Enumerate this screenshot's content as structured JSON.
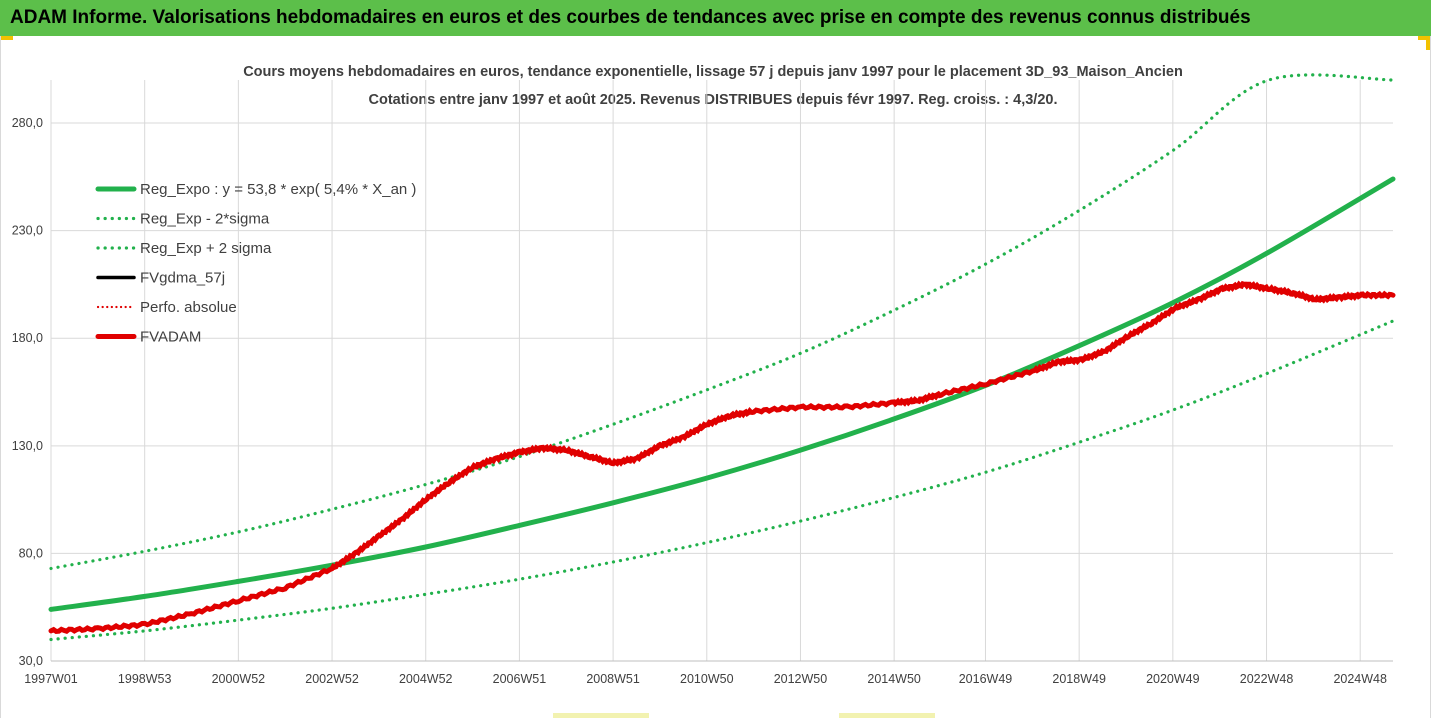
{
  "header": {
    "title": "ADAM Informe. Valorisations hebdomadaires en euros et des courbes de tendances avec prise en compte des revenus connus distribués"
  },
  "colors": {
    "banner": "#5cbf4a",
    "reg_expo": "#22b14c",
    "bands": "#22b14c",
    "fvgdma": "#000000",
    "perfo": "#e00000",
    "fvadam": "#e00000"
  },
  "chart_data": {
    "type": "line",
    "title": "Cours moyens hebdomadaires en euros, tendance exponentielle, lissage 57 j depuis janv 1997 pour le placement 3D_93_Maison_Ancien",
    "subtitle": "Cotations entre janv 1997 et août 2025. Revenus DISTRIBUES depuis févr 1997. Reg. croiss. : 4,3/20.",
    "xlabel": "",
    "ylabel": "",
    "x_range": [
      1997.0,
      2025.65
    ],
    "ylim": [
      30,
      300
    ],
    "yticks": [
      30,
      80,
      130,
      180,
      230,
      280
    ],
    "ytick_labels": [
      "30,0",
      "80,0",
      "130,0",
      "180,0",
      "230,0",
      "280,0"
    ],
    "xtick_labels": [
      "1997W01",
      "1998W53",
      "2000W52",
      "2002W52",
      "2004W52",
      "2006W51",
      "2008W51",
      "2010W50",
      "2012W50",
      "2014W50",
      "2016W49",
      "2018W49",
      "2020W49",
      "2022W48",
      "2024W48"
    ],
    "xtick_years": [
      1997.0,
      1999.0,
      2001.0,
      2003.0,
      2005.0,
      2007.0,
      2009.0,
      2011.0,
      2013.0,
      2015.0,
      2016.95,
      2018.95,
      2020.95,
      2022.95,
      2024.95
    ],
    "grid": true,
    "legend_position": "top-left",
    "series": [
      {
        "name": "Reg_Expo : y = 53,8 * exp( 5,4% *  X_an )",
        "style": "solid-thick",
        "color": "#22b14c",
        "x": [
          1997,
          1999,
          2001,
          2003,
          2005,
          2007,
          2009,
          2011,
          2013,
          2015,
          2017,
          2019,
          2021,
          2023,
          2025.65
        ],
        "values": [
          54,
          60,
          67,
          74.5,
          83,
          93,
          103.5,
          115,
          128,
          142.5,
          158.5,
          177,
          197,
          220,
          254
        ]
      },
      {
        "name": "Reg_Exp - 2*sigma",
        "style": "dotted",
        "color": "#22b14c",
        "x": [
          1997,
          1999,
          2001,
          2003,
          2005,
          2007,
          2009,
          2011,
          2013,
          2015,
          2017,
          2019,
          2021,
          2023,
          2025.65
        ],
        "values": [
          40,
          44,
          49,
          54.5,
          61,
          68,
          76,
          85,
          95,
          106,
          118,
          132,
          147,
          164,
          188
        ]
      },
      {
        "name": "Reg_Exp + 2 sigma",
        "style": "dotted",
        "color": "#22b14c",
        "x": [
          1997,
          1999,
          2001,
          2003,
          2005,
          2007,
          2009,
          2011,
          2013,
          2015,
          2017,
          2019,
          2021,
          2023,
          2025.65
        ],
        "values": [
          73,
          81,
          90,
          100.5,
          112,
          125,
          140,
          156,
          173,
          193,
          215,
          240,
          268,
          300,
          300
        ]
      },
      {
        "name": "FVgdma_57j",
        "style": "solid",
        "color": "#000000",
        "x": [],
        "values": []
      },
      {
        "name": "Perfo. absolue",
        "style": "dotted-thin",
        "color": "#e00000",
        "x": [],
        "values": []
      },
      {
        "name": "FVADAM",
        "style": "solid-thick",
        "color": "#e00000",
        "x": [
          1997,
          1998,
          1999,
          2000,
          2001,
          2002,
          2003,
          2003.5,
          2004,
          2004.5,
          2005,
          2005.5,
          2006,
          2006.5,
          2007,
          2007.5,
          2008,
          2008.5,
          2009,
          2009.5,
          2010,
          2010.5,
          2011,
          2011.5,
          2012,
          2013,
          2014,
          2015,
          2015.5,
          2016,
          2017,
          2018,
          2018.5,
          2019,
          2019.5,
          2020,
          2020.5,
          2021,
          2021.5,
          2022,
          2022.5,
          2023,
          2023.5,
          2024,
          2024.5,
          2025,
          2025.65
        ],
        "values": [
          44,
          45,
          47,
          52,
          58,
          64,
          73,
          80,
          88,
          96,
          105,
          113,
          120,
          124,
          127,
          129,
          128,
          125,
          122,
          124,
          130,
          134,
          140,
          144,
          146,
          148,
          148,
          150,
          151,
          154,
          159,
          165,
          169,
          170,
          174,
          181,
          187,
          194,
          198,
          203,
          205,
          203,
          201,
          198,
          199,
          200,
          200
        ]
      }
    ]
  }
}
